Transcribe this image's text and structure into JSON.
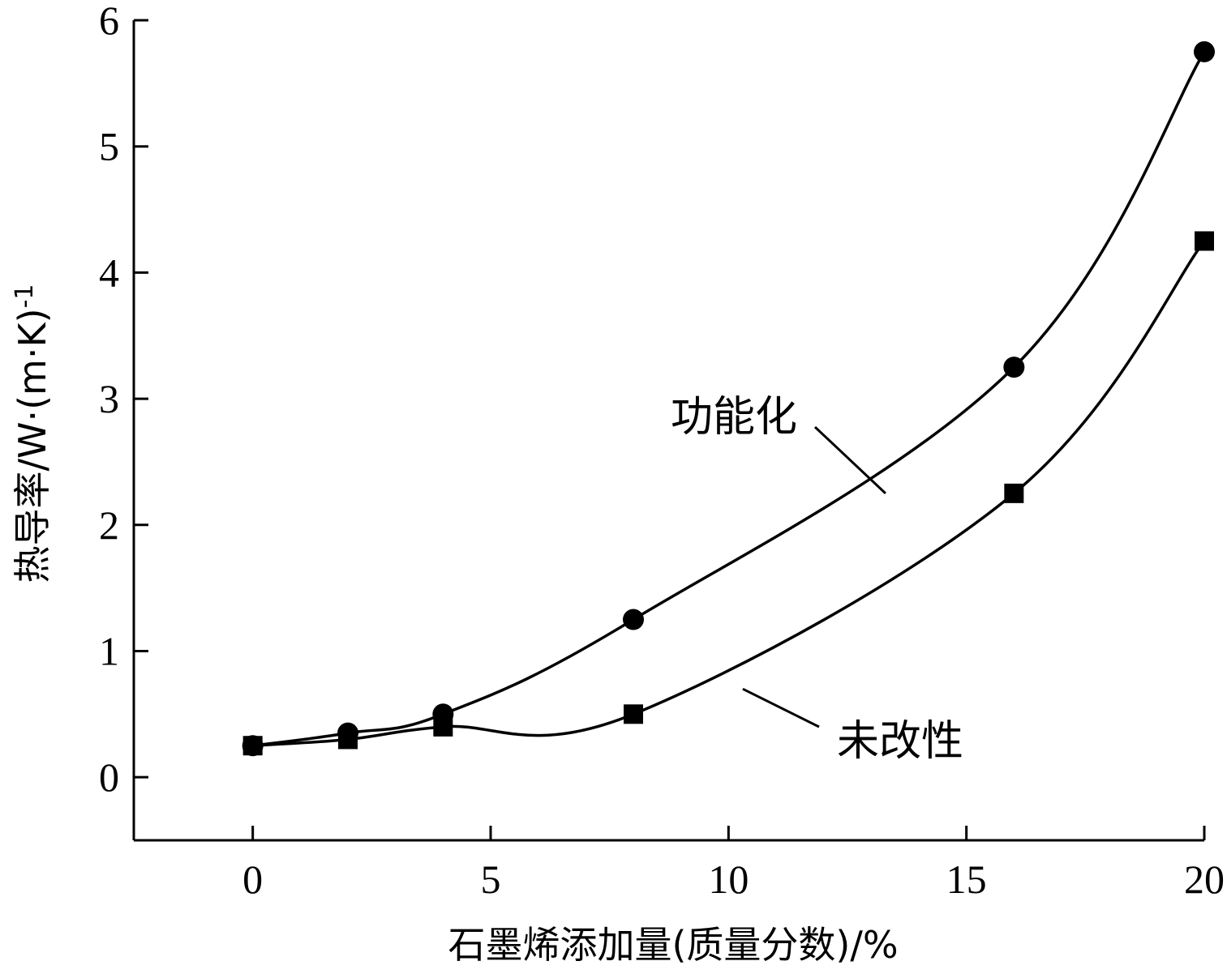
{
  "chart_data": {
    "type": "line",
    "title": "",
    "xlabel": "石墨烯添加量(质量分数)/%",
    "ylabel": "热导率/W·(m·K)",
    "ylabel_superscript": "-1",
    "xlim": [
      -2.5,
      20
    ],
    "ylim": [
      -0.5,
      6
    ],
    "xticks": [
      0,
      5,
      10,
      15,
      20
    ],
    "yticks": [
      0,
      1,
      2,
      3,
      4,
      5,
      6
    ],
    "grid": false,
    "legend": "none",
    "series": [
      {
        "name": "功能化",
        "marker": "circle",
        "x": [
          0,
          2,
          4,
          8,
          16,
          20
        ],
        "y": [
          0.25,
          0.35,
          0.5,
          1.25,
          3.25,
          5.75
        ]
      },
      {
        "name": "未改性",
        "marker": "square",
        "x": [
          0,
          2,
          4,
          8,
          16,
          20
        ],
        "y": [
          0.25,
          0.3,
          0.4,
          0.5,
          2.25,
          4.25
        ]
      }
    ],
    "annotations": [
      {
        "text": "功能化",
        "series": 0,
        "x": 13.3,
        "y": 2.25
      },
      {
        "text": "未改性",
        "series": 1,
        "x": 10.3,
        "y": 0.7
      }
    ]
  }
}
